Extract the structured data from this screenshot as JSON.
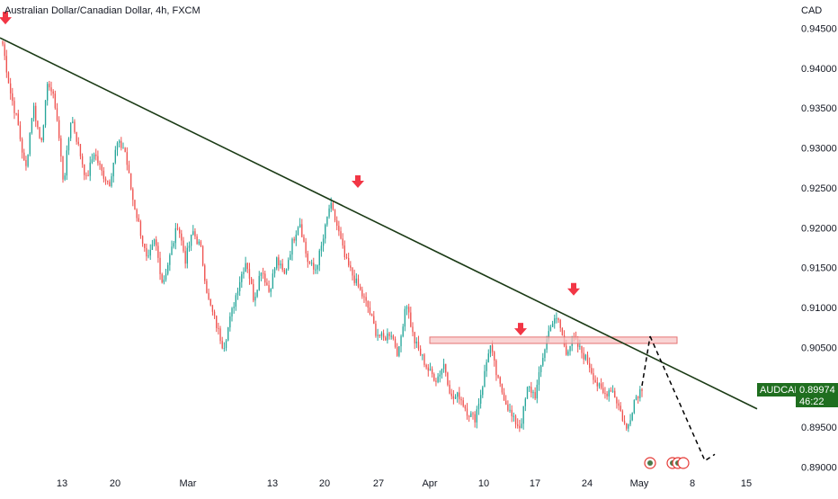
{
  "chart_data": {
    "type": "candlestick",
    "title": "Australian Dollar/Canadian Dollar, 4h, FXCM",
    "currency_label": "CAD",
    "x_ticks": [
      "13",
      "20",
      "Mar",
      "13",
      "20",
      "27",
      "Apr",
      "10",
      "17",
      "24",
      "May",
      "8",
      "15"
    ],
    "y_ticks": [
      "0.94500",
      "0.94000",
      "0.93500",
      "0.93000",
      "0.92500",
      "0.92000",
      "0.91500",
      "0.91000",
      "0.90500",
      "0.90000",
      "0.89500",
      "0.89000"
    ],
    "ylim": [
      0.8885,
      0.9465
    ],
    "price_badge": {
      "symbol": "AUDCAD",
      "price": "0.89974",
      "countdown": "46:22"
    },
    "price_path": [
      0.943,
      0.937,
      0.933,
      0.927,
      0.9355,
      0.9305,
      0.9385,
      0.935,
      0.9255,
      0.934,
      0.93,
      0.926,
      0.9295,
      0.927,
      0.9255,
      0.9305,
      0.93,
      0.924,
      0.92,
      0.9155,
      0.9185,
      0.913,
      0.9165,
      0.9205,
      0.916,
      0.9195,
      0.9175,
      0.911,
      0.908,
      0.905,
      0.909,
      0.913,
      0.916,
      0.911,
      0.915,
      0.912,
      0.916,
      0.914,
      0.918,
      0.921,
      0.916,
      0.9145,
      0.918,
      0.923,
      0.92,
      0.916,
      0.914,
      0.912,
      0.91,
      0.907,
      0.906,
      0.907,
      0.904,
      0.911,
      0.906,
      0.904,
      0.902,
      0.901,
      0.903,
      0.8985,
      0.899,
      0.897,
      0.896,
      0.9,
      0.9055,
      0.901,
      0.8985,
      0.896,
      0.895,
      0.9,
      0.899,
      0.904,
      0.908,
      0.9085,
      0.9045,
      0.906,
      0.9045,
      0.903,
      0.9005,
      0.899,
      0.9,
      0.8975,
      0.8945,
      0.8985,
      0.9
    ],
    "projection": [
      0.9064,
      0.8965,
      0.8908
    ],
    "support_zone": [
      0.9055,
      0.9063
    ],
    "swing_highs": [
      0.9438,
      0.9235,
      0.9108,
      0.906
    ],
    "trendline": [
      0.9438,
      0.8973
    ],
    "series": [
      {
        "name": "AUDCAD",
        "color_up": "#26a69a",
        "color_down": "#ef5350"
      }
    ],
    "trendline_color": "#1b3b16",
    "zone_color": "#f7c6c5",
    "arrow_color": "#f23645",
    "badge_color": "#1f6e1f"
  }
}
